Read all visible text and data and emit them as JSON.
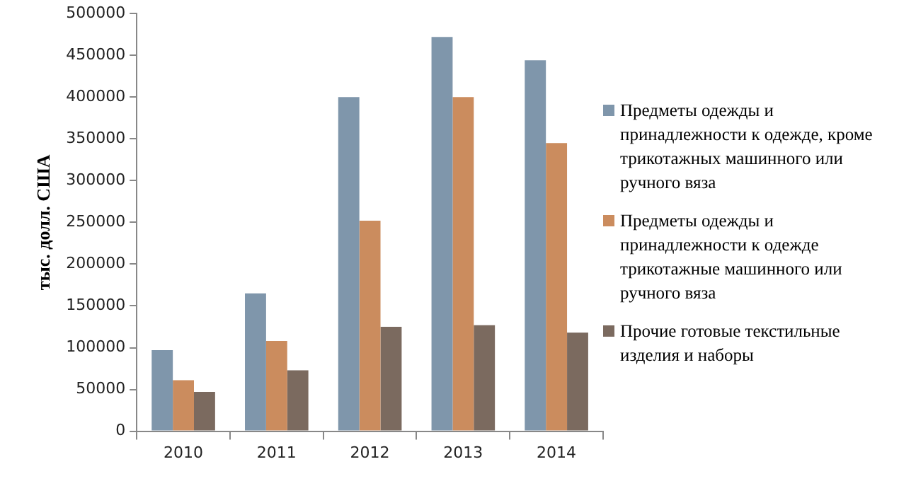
{
  "chart_data": {
    "type": "bar",
    "ylabel": "тыс. долл. США",
    "categories": [
      "2010",
      "2011",
      "2012",
      "2013",
      "2014"
    ],
    "series": [
      {
        "name": "Предметы одежды и принадлежности  к одежде, кроме трикотажных машинного или ручного вяза",
        "color": "#7f96ab",
        "values": [
          97000,
          165000,
          400000,
          472000,
          444000
        ]
      },
      {
        "name": "Предметы одежды и принадлежности  к одежде трикотажные машинного или ручного вяза",
        "color": "#cb8c5e",
        "values": [
          61000,
          108000,
          252000,
          400000,
          345000
        ]
      },
      {
        "name": "Прочие готовые текстильные изделия и наборы",
        "color": "#7b6a5f",
        "values": [
          47000,
          73000,
          125000,
          127000,
          118000
        ]
      }
    ],
    "ylim": [
      0,
      500000
    ],
    "yticks": [
      0,
      50000,
      100000,
      150000,
      200000,
      250000,
      300000,
      350000,
      400000,
      450000,
      500000
    ],
    "grid": false,
    "legend": "right"
  }
}
